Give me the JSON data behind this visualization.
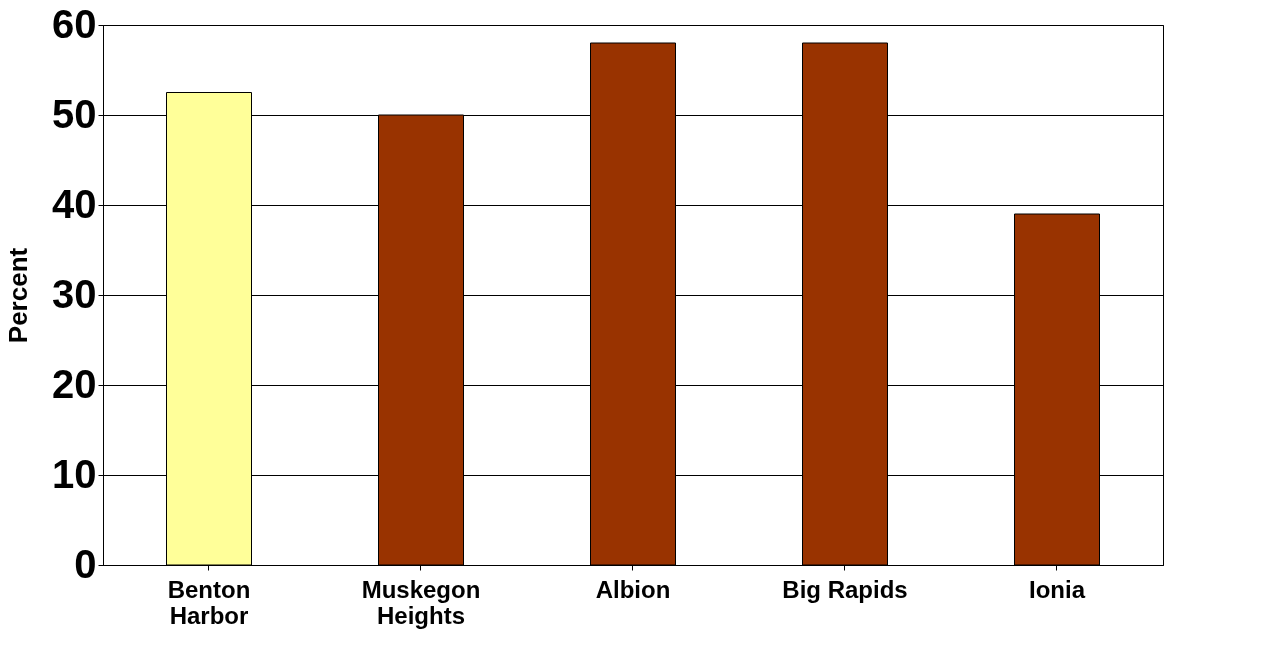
{
  "chart_data": {
    "type": "bar",
    "ylabel": "Percent",
    "categories": [
      "Benton\nHarbor",
      "Muskegon\nHeights",
      "Albion",
      "Big Rapids",
      "Ionia"
    ],
    "values": [
      52.5,
      50,
      58,
      58,
      39
    ],
    "colors": [
      "#ffff99",
      "#993300",
      "#993300",
      "#993300",
      "#993300"
    ],
    "ylim": [
      0,
      60
    ],
    "yticks": [
      0,
      10,
      20,
      30,
      40,
      50,
      60
    ],
    "grid": "y"
  }
}
